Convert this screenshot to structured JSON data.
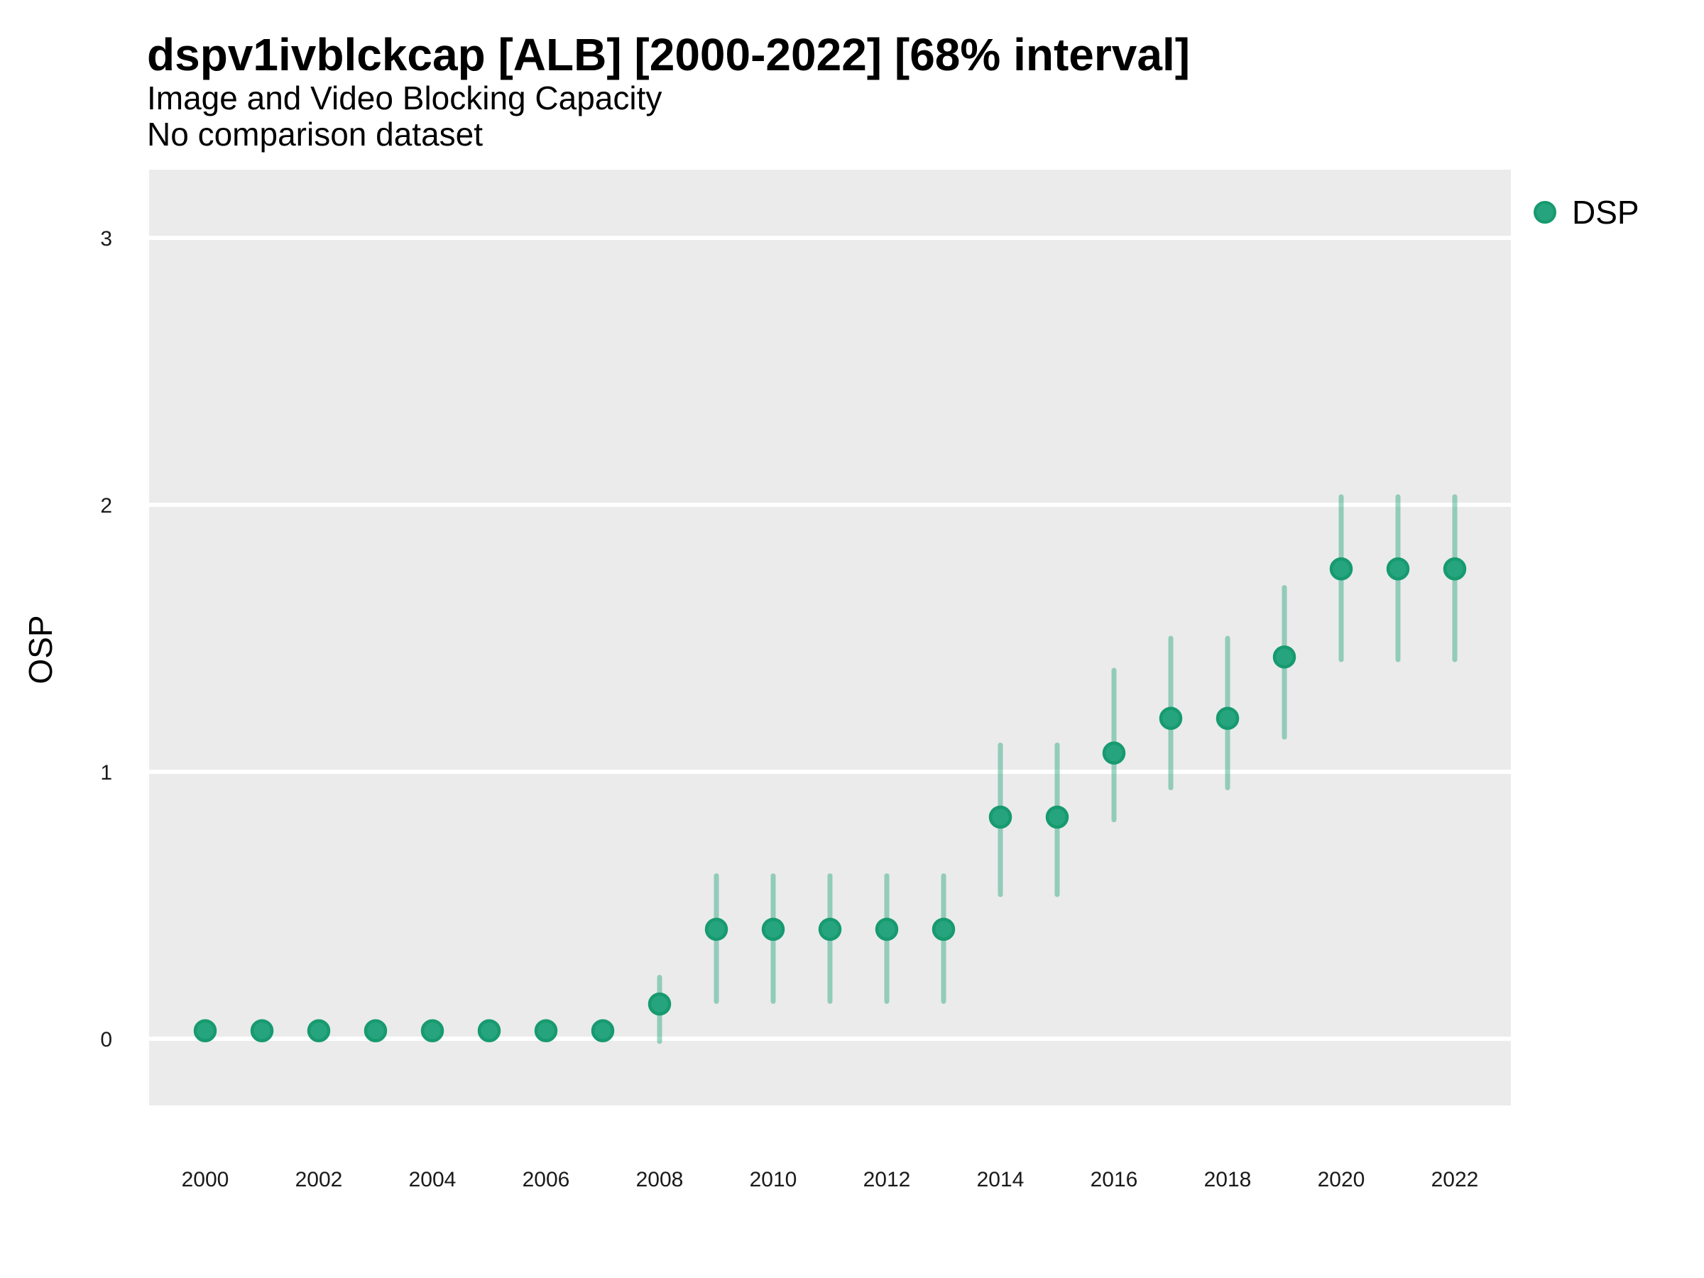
{
  "header": {
    "title": "dspv1ivblckcap [ALB] [2000-2022] [68% interval]",
    "subtitle": "Image and Video Blocking Capacity",
    "note": "No comparison dataset"
  },
  "legend": {
    "label": "DSP"
  },
  "colors": {
    "point_fill": "#25A47D",
    "point_stroke": "#179A6F",
    "interval_bar": "rgba(37,164,125,0.45)",
    "panel_bg": "#EBEBEB",
    "gridline": "#FFFFFF",
    "axis_text": "#1A1A1A",
    "text": "#000000"
  },
  "chart_data": {
    "type": "scatter",
    "title": "dspv1ivblckcap [ALB] [2000-2022] [68% interval]",
    "subtitle": "Image and Video Blocking Capacity",
    "note": "No comparison dataset",
    "xlabel": "",
    "ylabel": "OSP",
    "interval_level": "68%",
    "legend_position": "right",
    "grid": "horizontal-major-only",
    "x_ticks": [
      2000,
      2002,
      2004,
      2006,
      2008,
      2010,
      2012,
      2014,
      2016,
      2018,
      2020,
      2022
    ],
    "y_ticks": [
      0,
      1,
      2,
      3
    ],
    "xlim": [
      1999,
      2023
    ],
    "ylim": [
      -0.25,
      3.26
    ],
    "series": [
      {
        "name": "DSP",
        "points": [
          {
            "year": 2000,
            "value": 0.03,
            "low": null,
            "high": null
          },
          {
            "year": 2001,
            "value": 0.03,
            "low": null,
            "high": null
          },
          {
            "year": 2002,
            "value": 0.03,
            "low": null,
            "high": null
          },
          {
            "year": 2003,
            "value": 0.03,
            "low": null,
            "high": null
          },
          {
            "year": 2004,
            "value": 0.03,
            "low": null,
            "high": null
          },
          {
            "year": 2005,
            "value": 0.03,
            "low": null,
            "high": null
          },
          {
            "year": 2006,
            "value": 0.03,
            "low": null,
            "high": null
          },
          {
            "year": 2007,
            "value": 0.03,
            "low": null,
            "high": null
          },
          {
            "year": 2008,
            "value": 0.13,
            "low": -0.01,
            "high": 0.23
          },
          {
            "year": 2009,
            "value": 0.41,
            "low": 0.14,
            "high": 0.61
          },
          {
            "year": 2010,
            "value": 0.41,
            "low": 0.14,
            "high": 0.61
          },
          {
            "year": 2011,
            "value": 0.41,
            "low": 0.14,
            "high": 0.61
          },
          {
            "year": 2012,
            "value": 0.41,
            "low": 0.14,
            "high": 0.61
          },
          {
            "year": 2013,
            "value": 0.41,
            "low": 0.14,
            "high": 0.61
          },
          {
            "year": 2014,
            "value": 0.83,
            "low": 0.54,
            "high": 1.1
          },
          {
            "year": 2015,
            "value": 0.83,
            "low": 0.54,
            "high": 1.1
          },
          {
            "year": 2016,
            "value": 1.07,
            "low": 0.82,
            "high": 1.38
          },
          {
            "year": 2017,
            "value": 1.2,
            "low": 0.94,
            "high": 1.5
          },
          {
            "year": 2018,
            "value": 1.2,
            "low": 0.94,
            "high": 1.5
          },
          {
            "year": 2019,
            "value": 1.43,
            "low": 1.13,
            "high": 1.69
          },
          {
            "year": 2020,
            "value": 1.76,
            "low": 1.42,
            "high": 2.03
          },
          {
            "year": 2021,
            "value": 1.76,
            "low": 1.42,
            "high": 2.03
          },
          {
            "year": 2022,
            "value": 1.76,
            "low": 1.42,
            "high": 2.03
          }
        ]
      }
    ]
  }
}
